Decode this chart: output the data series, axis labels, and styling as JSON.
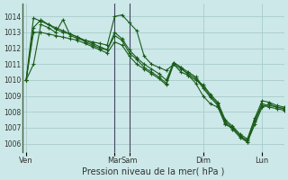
{
  "xlabel": "Pression niveau de la mer( hPa )",
  "background_color": "#cce8e8",
  "grid_color": "#aacccc",
  "line_color": "#1a5c1a",
  "ylim": [
    1005.5,
    1014.8
  ],
  "yticks": [
    1006,
    1007,
    1008,
    1009,
    1010,
    1011,
    1012,
    1013,
    1014
  ],
  "xtick_labels": [
    "Ven",
    "Mar",
    "Sam",
    "Dim",
    "Lun"
  ],
  "xtick_positions": [
    0,
    12,
    14,
    24,
    32
  ],
  "xlim": [
    -0.5,
    35
  ],
  "series": [
    [
      1010.0,
      1011.0,
      1013.5,
      1013.3,
      1013.0,
      1013.8,
      1012.8,
      1012.6,
      1012.5,
      1012.4,
      1012.3,
      1012.2,
      1014.0,
      1014.1,
      1013.6,
      1013.1,
      1011.5,
      1011.0,
      1010.8,
      1010.6,
      1011.0,
      1010.5,
      1010.3,
      1009.8,
      1009.0,
      1008.5,
      1008.3,
      1007.2,
      1007.0,
      1006.5,
      1006.1,
      1007.2,
      1008.3,
      1008.5,
      1008.3,
      1008.2
    ],
    [
      1010.0,
      1013.3,
      1013.8,
      1013.5,
      1013.2,
      1013.0,
      1012.9,
      1012.7,
      1012.4,
      1012.2,
      1012.0,
      1011.9,
      1012.8,
      1012.5,
      1011.7,
      1011.3,
      1010.8,
      1010.5,
      1010.2,
      1009.8,
      1011.1,
      1010.8,
      1010.5,
      1010.2,
      1009.6,
      1009.0,
      1008.5,
      1007.4,
      1007.0,
      1006.5,
      1006.2,
      1007.5,
      1008.5,
      1008.4,
      1008.3,
      1008.2
    ],
    [
      1010.0,
      1013.0,
      1013.0,
      1012.9,
      1012.8,
      1012.7,
      1012.6,
      1012.5,
      1012.3,
      1012.1,
      1011.9,
      1011.7,
      1012.4,
      1012.2,
      1011.5,
      1011.0,
      1010.7,
      1010.4,
      1010.1,
      1009.7,
      1011.0,
      1010.7,
      1010.4,
      1010.1,
      1009.5,
      1008.9,
      1008.4,
      1007.3,
      1006.9,
      1006.4,
      1006.1,
      1007.4,
      1008.4,
      1008.3,
      1008.2,
      1008.1
    ],
    [
      1010.0,
      1013.9,
      1013.7,
      1013.5,
      1013.3,
      1013.1,
      1012.9,
      1012.7,
      1012.5,
      1012.3,
      1012.1,
      1011.9,
      1013.0,
      1012.6,
      1011.9,
      1011.4,
      1011.0,
      1010.7,
      1010.4,
      1010.0,
      1011.1,
      1010.8,
      1010.3,
      1010.0,
      1009.7,
      1009.1,
      1008.6,
      1007.5,
      1007.1,
      1006.6,
      1006.3,
      1007.6,
      1008.7,
      1008.6,
      1008.4,
      1008.3
    ]
  ],
  "x_vlines": [
    12,
    14
  ],
  "vline_color": "#444466",
  "marker": "+"
}
